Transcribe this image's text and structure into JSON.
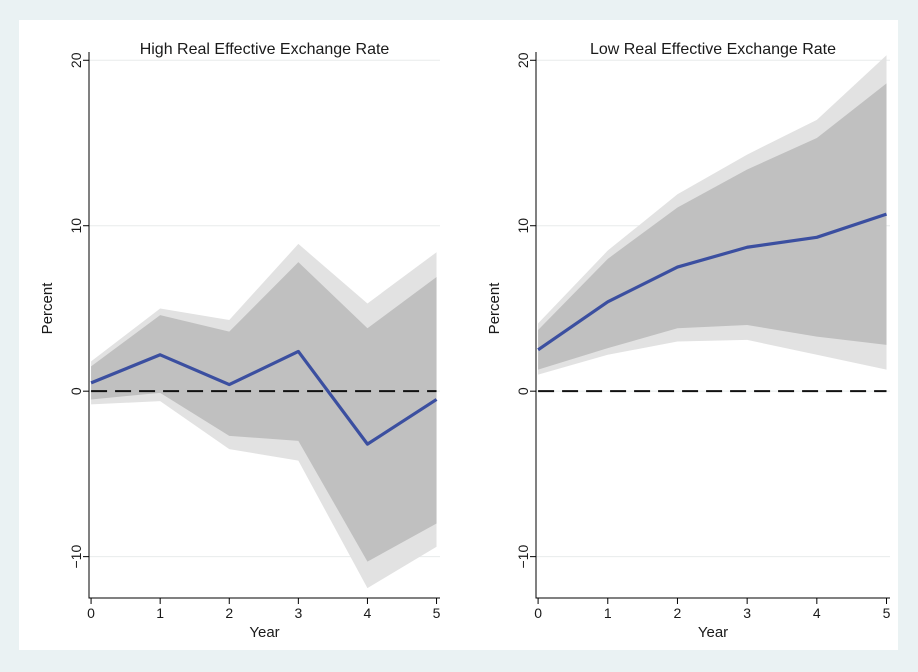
{
  "chart_data": [
    {
      "type": "line",
      "title": "High Real Effective Exchange Rate",
      "xlabel": "Year",
      "ylabel": "Percent",
      "x": [
        0,
        1,
        2,
        3,
        4,
        5
      ],
      "xticks": [
        0,
        1,
        2,
        3,
        4,
        5
      ],
      "yticks": [
        -10,
        0,
        10,
        20
      ],
      "ylim": [
        -12.5,
        20.5
      ],
      "xlim": [
        -0.03,
        5.05
      ],
      "grid": true,
      "zero_line": "dashed",
      "series": [
        {
          "values": [
            0.5,
            2.2,
            0.4,
            2.4,
            -3.2,
            -0.5
          ],
          "color": "#3b4fa0"
        }
      ],
      "bands": [
        {
          "level": "outer",
          "color": "#e2e2e2",
          "upper": [
            1.8,
            5.0,
            4.3,
            8.9,
            5.3,
            8.4
          ],
          "lower": [
            -0.8,
            -0.6,
            -3.5,
            -4.2,
            -11.9,
            -9.4
          ]
        },
        {
          "level": "inner",
          "color": "#c0c0c0",
          "upper": [
            1.5,
            4.6,
            3.6,
            7.8,
            3.8,
            6.9
          ],
          "lower": [
            -0.5,
            -0.1,
            -2.7,
            -3.0,
            -10.3,
            -8.0
          ]
        }
      ]
    },
    {
      "type": "line",
      "title": "Low Real Effective Exchange Rate",
      "xlabel": "Year",
      "ylabel": "Percent",
      "x": [
        0,
        1,
        2,
        3,
        4,
        5
      ],
      "xticks": [
        0,
        1,
        2,
        3,
        4,
        5
      ],
      "yticks": [
        -10,
        0,
        10,
        20
      ],
      "ylim": [
        -12.5,
        20.5
      ],
      "xlim": [
        -0.03,
        5.05
      ],
      "grid": true,
      "zero_line": "dashed",
      "series": [
        {
          "values": [
            2.5,
            5.4,
            7.5,
            8.7,
            9.3,
            10.7
          ],
          "color": "#3b4fa0"
        }
      ],
      "bands": [
        {
          "level": "outer",
          "color": "#e2e2e2",
          "upper": [
            4.1,
            8.5,
            11.9,
            14.3,
            16.4,
            20.3
          ],
          "lower": [
            1.0,
            2.2,
            3.0,
            3.1,
            2.2,
            1.3
          ]
        },
        {
          "level": "inner",
          "color": "#c0c0c0",
          "upper": [
            3.7,
            8.0,
            11.1,
            13.4,
            15.3,
            18.6
          ],
          "lower": [
            1.3,
            2.6,
            3.8,
            4.0,
            3.3,
            2.8
          ]
        }
      ]
    }
  ],
  "colors": {
    "background": "#eaf2f3",
    "panel": "#ffffff",
    "gridline": "#e8ecec",
    "axis": "#000000",
    "zero_line": "#111111"
  }
}
